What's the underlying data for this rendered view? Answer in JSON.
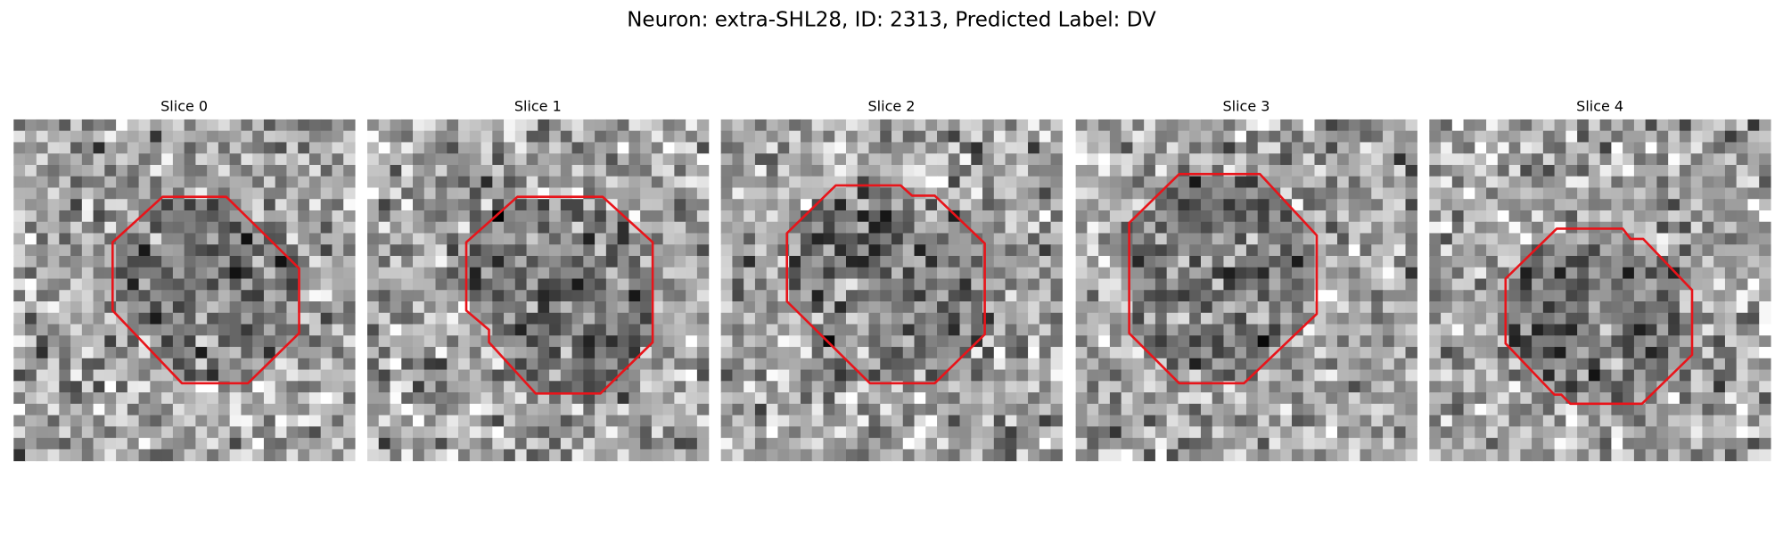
{
  "title": "Neuron: extra-SHL28, ID: 2313, Predicted Label: DV",
  "panels": [
    {
      "title": "Slice 0"
    },
    {
      "title": "Slice 1"
    },
    {
      "title": "Slice 2"
    },
    {
      "title": "Slice 3"
    },
    {
      "title": "Slice 4"
    }
  ]
}
